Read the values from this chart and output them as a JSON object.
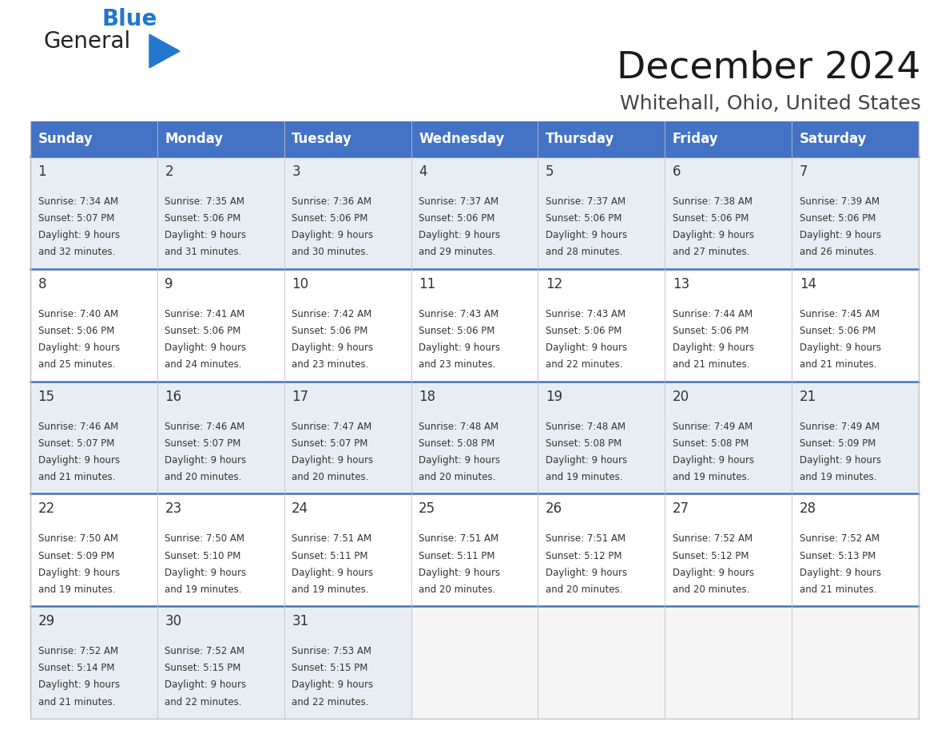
{
  "title": "December 2024",
  "subtitle": "Whitehall, Ohio, United States",
  "header_bg_color": "#4472C4",
  "header_text_color": "#FFFFFF",
  "row_bg_colors": [
    "#E8EDF4",
    "#FFFFFF",
    "#E8EDF4",
    "#FFFFFF",
    "#E8EDF4"
  ],
  "empty_cell_bg": "#F5F5F5",
  "border_color": "#4472C4",
  "separator_color": "#4472C4",
  "cell_border_color": "#C0C0C0",
  "text_color": "#333333",
  "days_of_week": [
    "Sunday",
    "Monday",
    "Tuesday",
    "Wednesday",
    "Thursday",
    "Friday",
    "Saturday"
  ],
  "calendar_data": [
    [
      {
        "day": 1,
        "sunrise": "7:34 AM",
        "sunset": "5:07 PM",
        "daylight_hours": 9,
        "daylight_minutes": 32
      },
      {
        "day": 2,
        "sunrise": "7:35 AM",
        "sunset": "5:06 PM",
        "daylight_hours": 9,
        "daylight_minutes": 31
      },
      {
        "day": 3,
        "sunrise": "7:36 AM",
        "sunset": "5:06 PM",
        "daylight_hours": 9,
        "daylight_minutes": 30
      },
      {
        "day": 4,
        "sunrise": "7:37 AM",
        "sunset": "5:06 PM",
        "daylight_hours": 9,
        "daylight_minutes": 29
      },
      {
        "day": 5,
        "sunrise": "7:37 AM",
        "sunset": "5:06 PM",
        "daylight_hours": 9,
        "daylight_minutes": 28
      },
      {
        "day": 6,
        "sunrise": "7:38 AM",
        "sunset": "5:06 PM",
        "daylight_hours": 9,
        "daylight_minutes": 27
      },
      {
        "day": 7,
        "sunrise": "7:39 AM",
        "sunset": "5:06 PM",
        "daylight_hours": 9,
        "daylight_minutes": 26
      }
    ],
    [
      {
        "day": 8,
        "sunrise": "7:40 AM",
        "sunset": "5:06 PM",
        "daylight_hours": 9,
        "daylight_minutes": 25
      },
      {
        "day": 9,
        "sunrise": "7:41 AM",
        "sunset": "5:06 PM",
        "daylight_hours": 9,
        "daylight_minutes": 24
      },
      {
        "day": 10,
        "sunrise": "7:42 AM",
        "sunset": "5:06 PM",
        "daylight_hours": 9,
        "daylight_minutes": 23
      },
      {
        "day": 11,
        "sunrise": "7:43 AM",
        "sunset": "5:06 PM",
        "daylight_hours": 9,
        "daylight_minutes": 23
      },
      {
        "day": 12,
        "sunrise": "7:43 AM",
        "sunset": "5:06 PM",
        "daylight_hours": 9,
        "daylight_minutes": 22
      },
      {
        "day": 13,
        "sunrise": "7:44 AM",
        "sunset": "5:06 PM",
        "daylight_hours": 9,
        "daylight_minutes": 21
      },
      {
        "day": 14,
        "sunrise": "7:45 AM",
        "sunset": "5:06 PM",
        "daylight_hours": 9,
        "daylight_minutes": 21
      }
    ],
    [
      {
        "day": 15,
        "sunrise": "7:46 AM",
        "sunset": "5:07 PM",
        "daylight_hours": 9,
        "daylight_minutes": 21
      },
      {
        "day": 16,
        "sunrise": "7:46 AM",
        "sunset": "5:07 PM",
        "daylight_hours": 9,
        "daylight_minutes": 20
      },
      {
        "day": 17,
        "sunrise": "7:47 AM",
        "sunset": "5:07 PM",
        "daylight_hours": 9,
        "daylight_minutes": 20
      },
      {
        "day": 18,
        "sunrise": "7:48 AM",
        "sunset": "5:08 PM",
        "daylight_hours": 9,
        "daylight_minutes": 20
      },
      {
        "day": 19,
        "sunrise": "7:48 AM",
        "sunset": "5:08 PM",
        "daylight_hours": 9,
        "daylight_minutes": 19
      },
      {
        "day": 20,
        "sunrise": "7:49 AM",
        "sunset": "5:08 PM",
        "daylight_hours": 9,
        "daylight_minutes": 19
      },
      {
        "day": 21,
        "sunrise": "7:49 AM",
        "sunset": "5:09 PM",
        "daylight_hours": 9,
        "daylight_minutes": 19
      }
    ],
    [
      {
        "day": 22,
        "sunrise": "7:50 AM",
        "sunset": "5:09 PM",
        "daylight_hours": 9,
        "daylight_minutes": 19
      },
      {
        "day": 23,
        "sunrise": "7:50 AM",
        "sunset": "5:10 PM",
        "daylight_hours": 9,
        "daylight_minutes": 19
      },
      {
        "day": 24,
        "sunrise": "7:51 AM",
        "sunset": "5:11 PM",
        "daylight_hours": 9,
        "daylight_minutes": 19
      },
      {
        "day": 25,
        "sunrise": "7:51 AM",
        "sunset": "5:11 PM",
        "daylight_hours": 9,
        "daylight_minutes": 20
      },
      {
        "day": 26,
        "sunrise": "7:51 AM",
        "sunset": "5:12 PM",
        "daylight_hours": 9,
        "daylight_minutes": 20
      },
      {
        "day": 27,
        "sunrise": "7:52 AM",
        "sunset": "5:12 PM",
        "daylight_hours": 9,
        "daylight_minutes": 20
      },
      {
        "day": 28,
        "sunrise": "7:52 AM",
        "sunset": "5:13 PM",
        "daylight_hours": 9,
        "daylight_minutes": 21
      }
    ],
    [
      {
        "day": 29,
        "sunrise": "7:52 AM",
        "sunset": "5:14 PM",
        "daylight_hours": 9,
        "daylight_minutes": 21
      },
      {
        "day": 30,
        "sunrise": "7:52 AM",
        "sunset": "5:15 PM",
        "daylight_hours": 9,
        "daylight_minutes": 22
      },
      {
        "day": 31,
        "sunrise": "7:53 AM",
        "sunset": "5:15 PM",
        "daylight_hours": 9,
        "daylight_minutes": 22
      },
      null,
      null,
      null,
      null
    ]
  ],
  "num_rows": 5,
  "num_cols": 7,
  "fig_width": 11.88,
  "fig_height": 9.18
}
